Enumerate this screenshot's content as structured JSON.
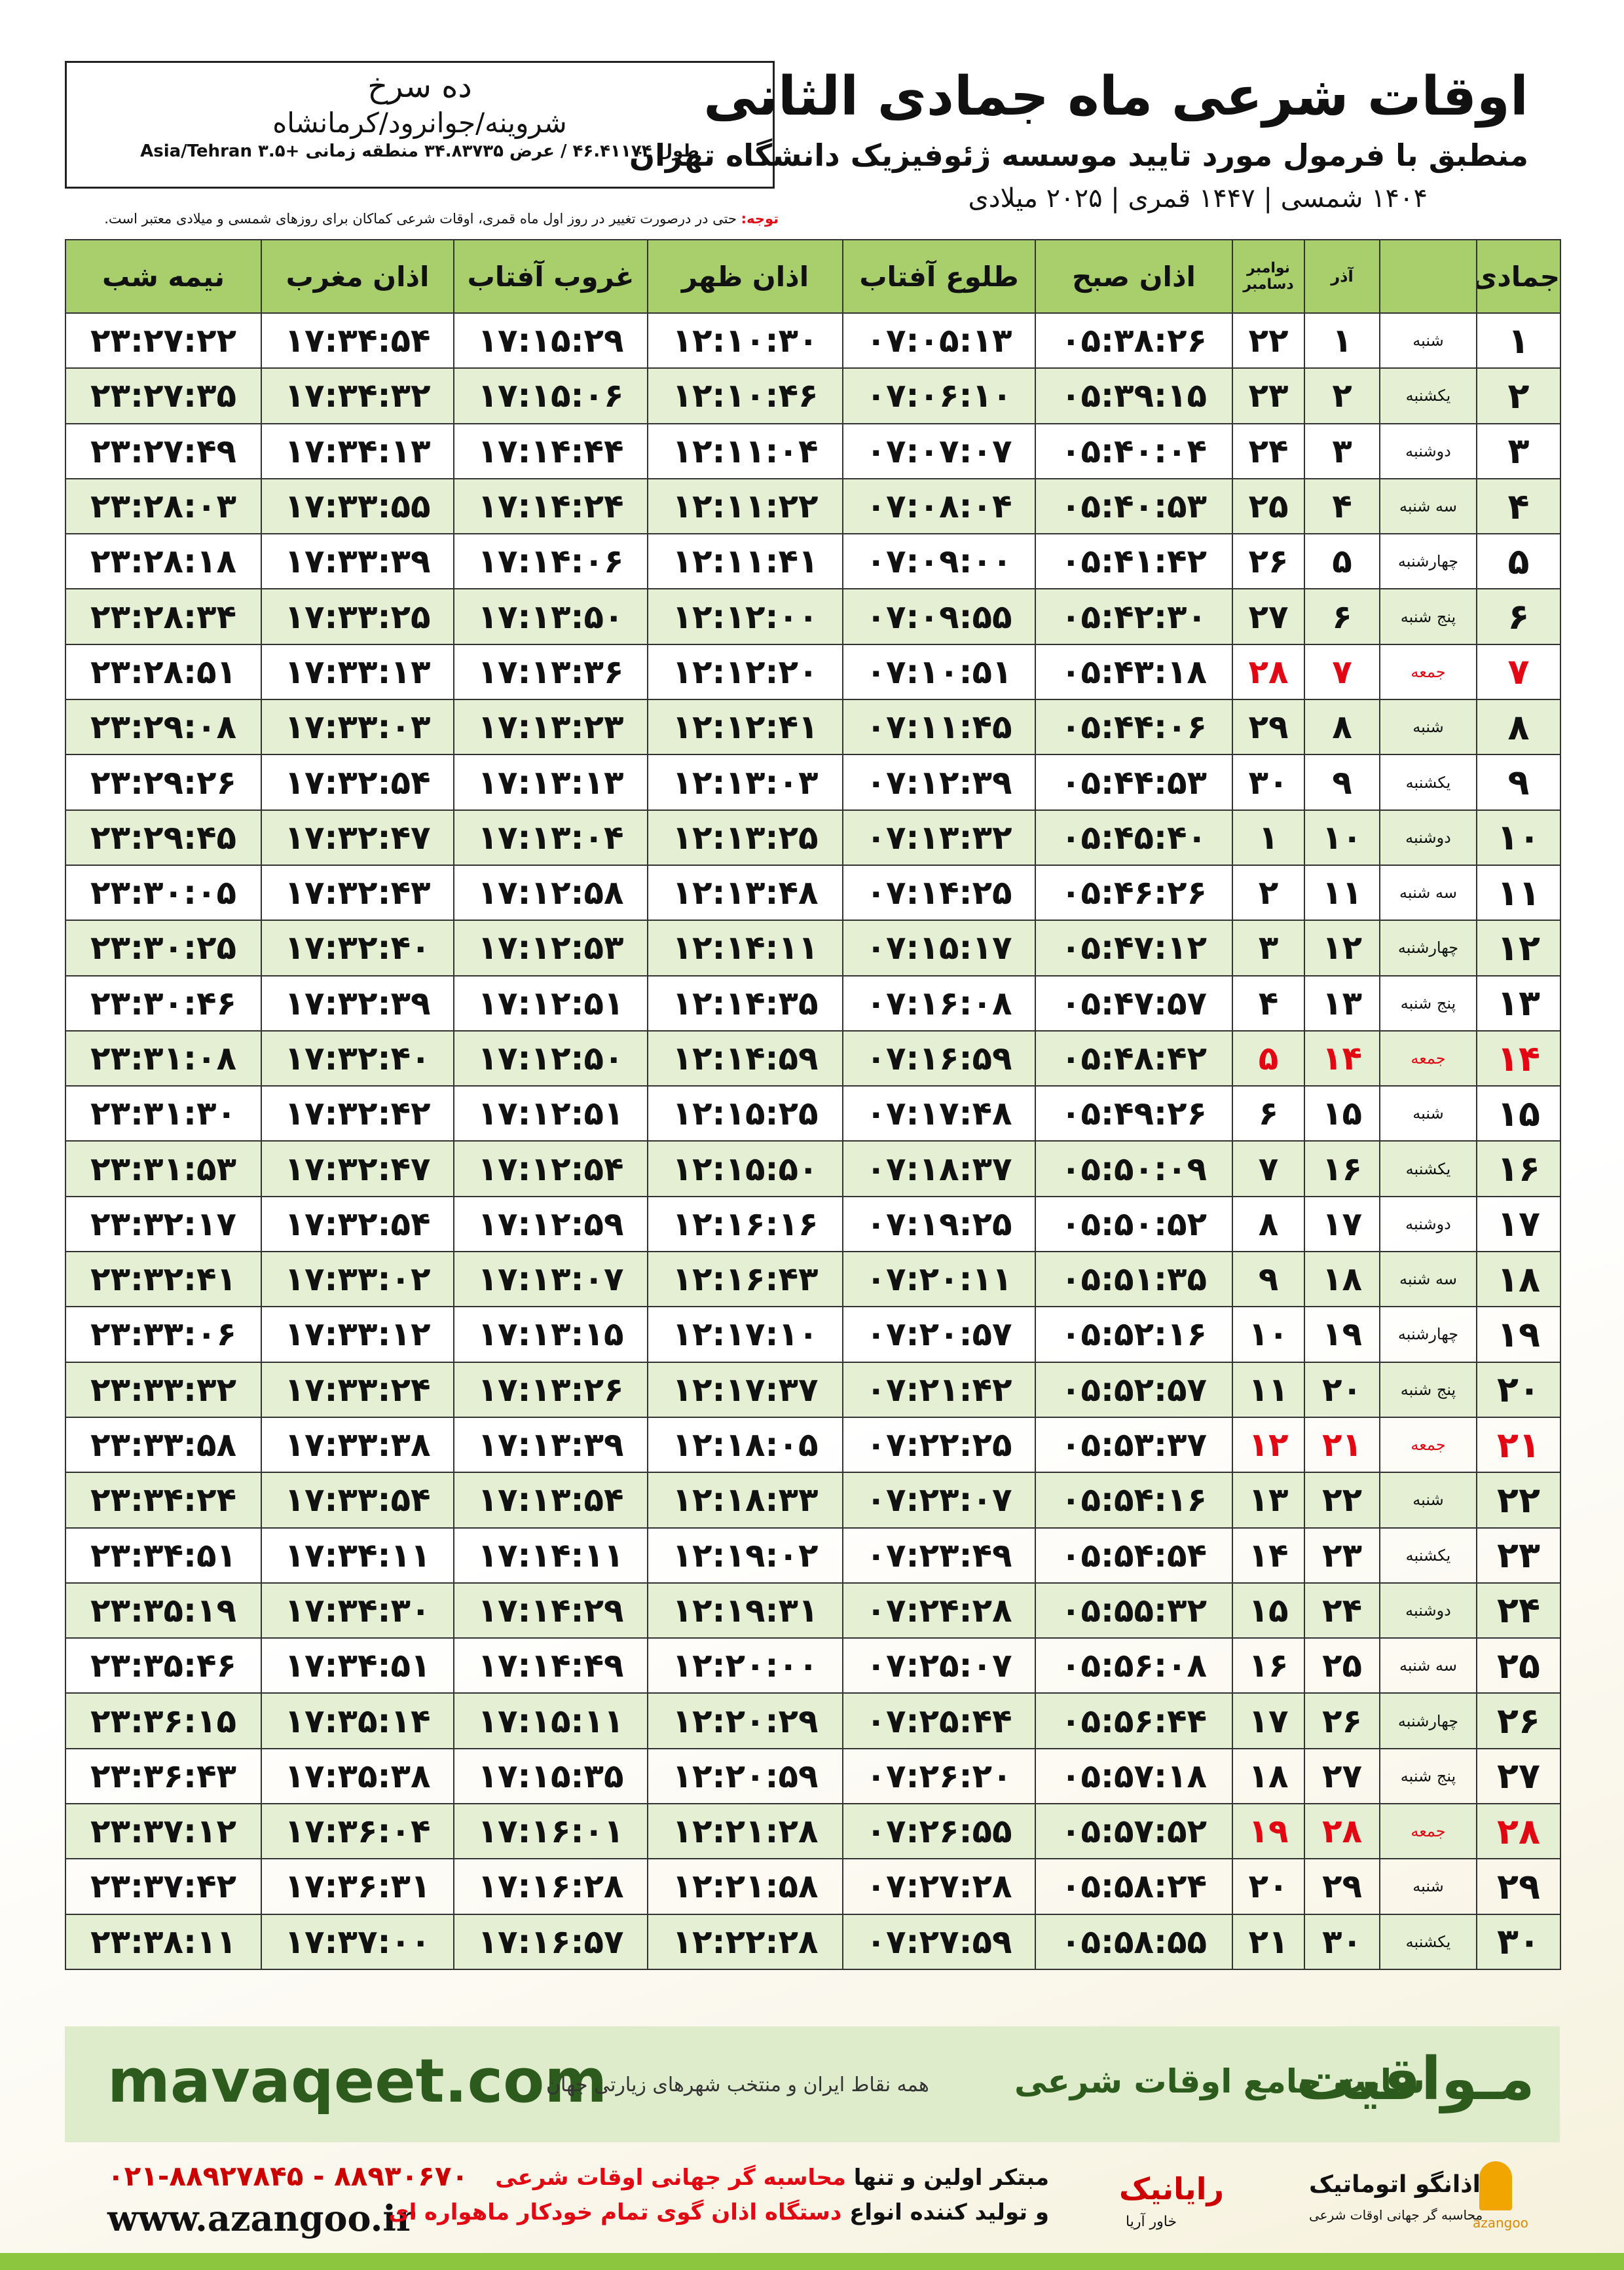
{
  "header": {
    "title": "اوقات شرعی ماه جمادی الثانی",
    "subtitle": "منطبق با فرمول مورد تایید موسسه ژئوفیزیک دانشگاه تهران",
    "dates": "۱۴۰۴ شمسی | ۱۴۴۷ قمری | ۲۰۲۵ میلادی"
  },
  "location": {
    "name": "ده سرخ",
    "region": "شروینه/جوانرود/کرمانشاه",
    "coords": "طول ۴۶.۴۱۱۷۴ / عرض ۳۴.۸۳۷۳۵ منطقه زمانی +۳.۵ Asia/Tehran"
  },
  "note": {
    "label": "توجه:",
    "text": "حتی در درصورت تغییر در روز اول ماه قمری، اوقات شرعی کماکان برای روزهای شمسی و میلادی معتبر است."
  },
  "table": {
    "columns": [
      "جمادی الثانی",
      "",
      "آذر",
      "",
      "اذان صبح",
      "طلوع آفتاب",
      "اذان ظهر",
      "غروب آفتاب",
      "اذان مغرب",
      "نیمه شب"
    ],
    "greg_header": [
      "نوامبر",
      "دسامبر"
    ],
    "highlight_rows": [
      6,
      13,
      20,
      27
    ],
    "highlight_color": "#e30613",
    "header_color": "#a8cf6b",
    "alt_row_color": "#e4efd3",
    "rows": [
      [
        "۱",
        "شنبه",
        "۱",
        "۲۲",
        "۰۵:۳۸:۲۶",
        "۰۷:۰۵:۱۳",
        "۱۲:۱۰:۳۰",
        "۱۷:۱۵:۲۹",
        "۱۷:۳۴:۵۴",
        "۲۳:۲۷:۲۲"
      ],
      [
        "۲",
        "یکشنبه",
        "۲",
        "۲۳",
        "۰۵:۳۹:۱۵",
        "۰۷:۰۶:۱۰",
        "۱۲:۱۰:۴۶",
        "۱۷:۱۵:۰۶",
        "۱۷:۳۴:۳۲",
        "۲۳:۲۷:۳۵"
      ],
      [
        "۳",
        "دوشنبه",
        "۳",
        "۲۴",
        "۰۵:۴۰:۰۴",
        "۰۷:۰۷:۰۷",
        "۱۲:۱۱:۰۴",
        "۱۷:۱۴:۴۴",
        "۱۷:۳۴:۱۳",
        "۲۳:۲۷:۴۹"
      ],
      [
        "۴",
        "سه شنبه",
        "۴",
        "۲۵",
        "۰۵:۴۰:۵۳",
        "۰۷:۰۸:۰۴",
        "۱۲:۱۱:۲۲",
        "۱۷:۱۴:۲۴",
        "۱۷:۳۳:۵۵",
        "۲۳:۲۸:۰۳"
      ],
      [
        "۵",
        "چهارشنبه",
        "۵",
        "۲۶",
        "۰۵:۴۱:۴۲",
        "۰۷:۰۹:۰۰",
        "۱۲:۱۱:۴۱",
        "۱۷:۱۴:۰۶",
        "۱۷:۳۳:۳۹",
        "۲۳:۲۸:۱۸"
      ],
      [
        "۶",
        "پنج شنبه",
        "۶",
        "۲۷",
        "۰۵:۴۲:۳۰",
        "۰۷:۰۹:۵۵",
        "۱۲:۱۲:۰۰",
        "۱۷:۱۳:۵۰",
        "۱۷:۳۳:۲۵",
        "۲۳:۲۸:۳۴"
      ],
      [
        "۷",
        "جمعه",
        "۷",
        "۲۸",
        "۰۵:۴۳:۱۸",
        "۰۷:۱۰:۵۱",
        "۱۲:۱۲:۲۰",
        "۱۷:۱۳:۳۶",
        "۱۷:۳۳:۱۳",
        "۲۳:۲۸:۵۱"
      ],
      [
        "۸",
        "شنبه",
        "۸",
        "۲۹",
        "۰۵:۴۴:۰۶",
        "۰۷:۱۱:۴۵",
        "۱۲:۱۲:۴۱",
        "۱۷:۱۳:۲۳",
        "۱۷:۳۳:۰۳",
        "۲۳:۲۹:۰۸"
      ],
      [
        "۹",
        "یکشنبه",
        "۹",
        "۳۰",
        "۰۵:۴۴:۵۳",
        "۰۷:۱۲:۳۹",
        "۱۲:۱۳:۰۳",
        "۱۷:۱۳:۱۳",
        "۱۷:۳۲:۵۴",
        "۲۳:۲۹:۲۶"
      ],
      [
        "۱۰",
        "دوشنبه",
        "۱۰",
        "۱",
        "۰۵:۴۵:۴۰",
        "۰۷:۱۳:۳۲",
        "۱۲:۱۳:۲۵",
        "۱۷:۱۳:۰۴",
        "۱۷:۳۲:۴۷",
        "۲۳:۲۹:۴۵"
      ],
      [
        "۱۱",
        "سه شنبه",
        "۱۱",
        "۲",
        "۰۵:۴۶:۲۶",
        "۰۷:۱۴:۲۵",
        "۱۲:۱۳:۴۸",
        "۱۷:۱۲:۵۸",
        "۱۷:۳۲:۴۳",
        "۲۳:۳۰:۰۵"
      ],
      [
        "۱۲",
        "چهارشنبه",
        "۱۲",
        "۳",
        "۰۵:۴۷:۱۲",
        "۰۷:۱۵:۱۷",
        "۱۲:۱۴:۱۱",
        "۱۷:۱۲:۵۳",
        "۱۷:۳۲:۴۰",
        "۲۳:۳۰:۲۵"
      ],
      [
        "۱۳",
        "پنج شنبه",
        "۱۳",
        "۴",
        "۰۵:۴۷:۵۷",
        "۰۷:۱۶:۰۸",
        "۱۲:۱۴:۳۵",
        "۱۷:۱۲:۵۱",
        "۱۷:۳۲:۳۹",
        "۲۳:۳۰:۴۶"
      ],
      [
        "۱۴",
        "جمعه",
        "۱۴",
        "۵",
        "۰۵:۴۸:۴۲",
        "۰۷:۱۶:۵۹",
        "۱۲:۱۴:۵۹",
        "۱۷:۱۲:۵۰",
        "۱۷:۳۲:۴۰",
        "۲۳:۳۱:۰۸"
      ],
      [
        "۱۵",
        "شنبه",
        "۱۵",
        "۶",
        "۰۵:۴۹:۲۶",
        "۰۷:۱۷:۴۸",
        "۱۲:۱۵:۲۵",
        "۱۷:۱۲:۵۱",
        "۱۷:۳۲:۴۲",
        "۲۳:۳۱:۳۰"
      ],
      [
        "۱۶",
        "یکشنبه",
        "۱۶",
        "۷",
        "۰۵:۵۰:۰۹",
        "۰۷:۱۸:۳۷",
        "۱۲:۱۵:۵۰",
        "۱۷:۱۲:۵۴",
        "۱۷:۳۲:۴۷",
        "۲۳:۳۱:۵۳"
      ],
      [
        "۱۷",
        "دوشنبه",
        "۱۷",
        "۸",
        "۰۵:۵۰:۵۲",
        "۰۷:۱۹:۲۵",
        "۱۲:۱۶:۱۶",
        "۱۷:۱۲:۵۹",
        "۱۷:۳۲:۵۴",
        "۲۳:۳۲:۱۷"
      ],
      [
        "۱۸",
        "سه شنبه",
        "۱۸",
        "۹",
        "۰۵:۵۱:۳۵",
        "۰۷:۲۰:۱۱",
        "۱۲:۱۶:۴۳",
        "۱۷:۱۳:۰۷",
        "۱۷:۳۳:۰۲",
        "۲۳:۳۲:۴۱"
      ],
      [
        "۱۹",
        "چهارشنبه",
        "۱۹",
        "۱۰",
        "۰۵:۵۲:۱۶",
        "۰۷:۲۰:۵۷",
        "۱۲:۱۷:۱۰",
        "۱۷:۱۳:۱۵",
        "۱۷:۳۳:۱۲",
        "۲۳:۳۳:۰۶"
      ],
      [
        "۲۰",
        "پنج شنبه",
        "۲۰",
        "۱۱",
        "۰۵:۵۲:۵۷",
        "۰۷:۲۱:۴۲",
        "۱۲:۱۷:۳۷",
        "۱۷:۱۳:۲۶",
        "۱۷:۳۳:۲۴",
        "۲۳:۳۳:۳۲"
      ],
      [
        "۲۱",
        "جمعه",
        "۲۱",
        "۱۲",
        "۰۵:۵۳:۳۷",
        "۰۷:۲۲:۲۵",
        "۱۲:۱۸:۰۵",
        "۱۷:۱۳:۳۹",
        "۱۷:۳۳:۳۸",
        "۲۳:۳۳:۵۸"
      ],
      [
        "۲۲",
        "شنبه",
        "۲۲",
        "۱۳",
        "۰۵:۵۴:۱۶",
        "۰۷:۲۳:۰۷",
        "۱۲:۱۸:۳۳",
        "۱۷:۱۳:۵۴",
        "۱۷:۳۳:۵۴",
        "۲۳:۳۴:۲۴"
      ],
      [
        "۲۳",
        "یکشنبه",
        "۲۳",
        "۱۴",
        "۰۵:۵۴:۵۴",
        "۰۷:۲۳:۴۹",
        "۱۲:۱۹:۰۲",
        "۱۷:۱۴:۱۱",
        "۱۷:۳۴:۱۱",
        "۲۳:۳۴:۵۱"
      ],
      [
        "۲۴",
        "دوشنبه",
        "۲۴",
        "۱۵",
        "۰۵:۵۵:۳۲",
        "۰۷:۲۴:۲۸",
        "۱۲:۱۹:۳۱",
        "۱۷:۱۴:۲۹",
        "۱۷:۳۴:۳۰",
        "۲۳:۳۵:۱۹"
      ],
      [
        "۲۵",
        "سه شنبه",
        "۲۵",
        "۱۶",
        "۰۵:۵۶:۰۸",
        "۰۷:۲۵:۰۷",
        "۱۲:۲۰:۰۰",
        "۱۷:۱۴:۴۹",
        "۱۷:۳۴:۵۱",
        "۲۳:۳۵:۴۶"
      ],
      [
        "۲۶",
        "چهارشنبه",
        "۲۶",
        "۱۷",
        "۰۵:۵۶:۴۴",
        "۰۷:۲۵:۴۴",
        "۱۲:۲۰:۲۹",
        "۱۷:۱۵:۱۱",
        "۱۷:۳۵:۱۴",
        "۲۳:۳۶:۱۵"
      ],
      [
        "۲۷",
        "پنج شنبه",
        "۲۷",
        "۱۸",
        "۰۵:۵۷:۱۸",
        "۰۷:۲۶:۲۰",
        "۱۲:۲۰:۵۹",
        "۱۷:۱۵:۳۵",
        "۱۷:۳۵:۳۸",
        "۲۳:۳۶:۴۳"
      ],
      [
        "۲۸",
        "جمعه",
        "۲۸",
        "۱۹",
        "۰۵:۵۷:۵۲",
        "۰۷:۲۶:۵۵",
        "۱۲:۲۱:۲۸",
        "۱۷:۱۶:۰۱",
        "۱۷:۳۶:۰۴",
        "۲۳:۳۷:۱۲"
      ],
      [
        "۲۹",
        "شنبه",
        "۲۹",
        "۲۰",
        "۰۵:۵۸:۲۴",
        "۰۷:۲۷:۲۸",
        "۱۲:۲۱:۵۸",
        "۱۷:۱۶:۲۸",
        "۱۷:۳۶:۳۱",
        "۲۳:۳۷:۴۲"
      ],
      [
        "۳۰",
        "یکشنبه",
        "۳۰",
        "۲۱",
        "۰۵:۵۸:۵۵",
        "۰۷:۲۷:۵۹",
        "۱۲:۲۲:۲۸",
        "۱۷:۱۶:۵۷",
        "۱۷:۳۷:۰۰",
        "۲۳:۳۸:۱۱"
      ]
    ]
  },
  "banner": {
    "site": "mavaqeet.com",
    "brand": "مـواقیت",
    "slogan": "سایت جامع اوقات شرعی",
    "tagline": "همه نقاط ایران و منتخب شهرهای زیارتی جهان"
  },
  "footer": {
    "phones": "۰۲۱-۸۸۹۲۷۸۴۵ - ۸۸۹۳۰۶۷۰",
    "web": "www.azangoo.ir",
    "line1": "مبتکر اولین و تنها",
    "line1_red": "محاسبه گر جهانی اوقات شرعی",
    "line2": "و تولید کننده انواع",
    "line2_red": "دستگاه اذان گوی تمام خودکار ماهواره ای",
    "logo1": "رایانیک",
    "logo1_sub": "خاور آریا",
    "logo2": "اذانگو اتوماتیک",
    "logo2_sub": "محاسبه گر جهانی اوقات شرعی",
    "logo2_en": "azangoo"
  }
}
